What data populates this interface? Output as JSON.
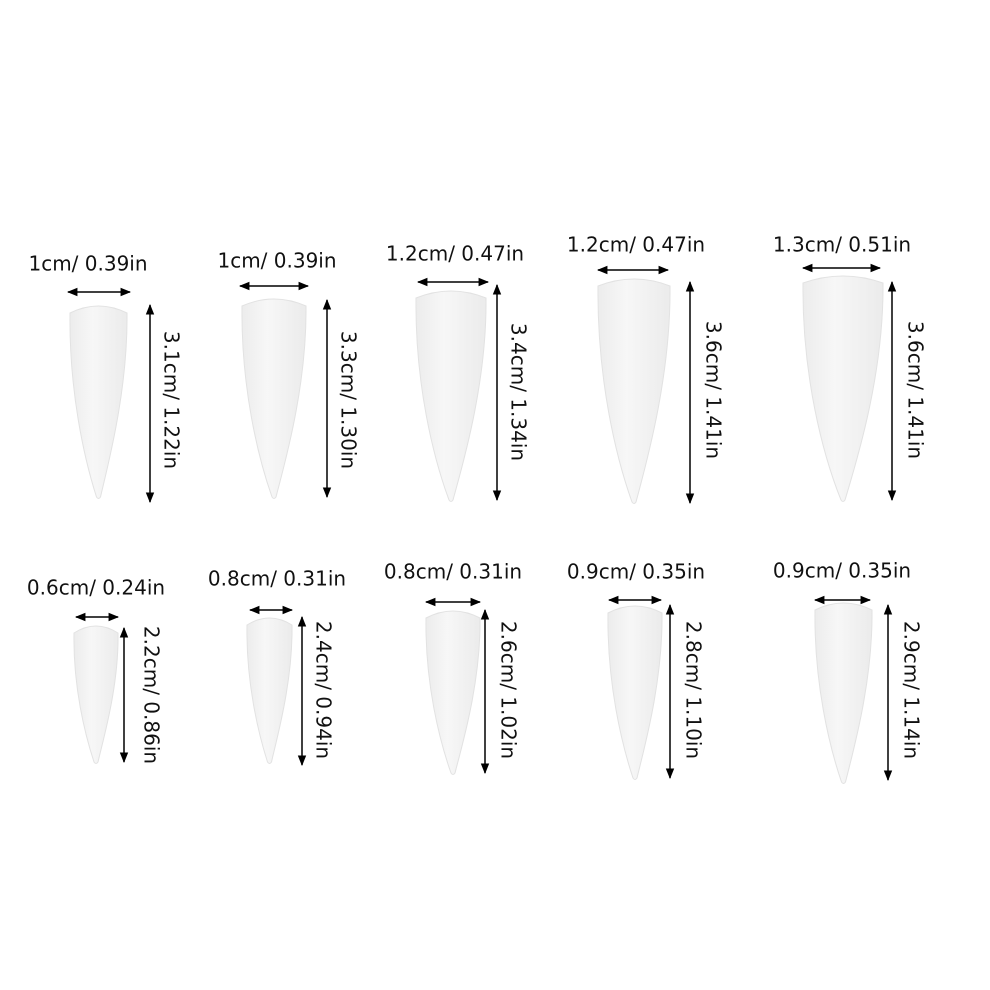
{
  "nails": [
    {
      "width": "1cm/ 0.39in",
      "length": "3.1cm/ 1.22in"
    },
    {
      "width": "1cm/ 0.39in",
      "length": "3.3cm/ 1.30in"
    },
    {
      "width": "1.2cm/ 0.47in",
      "length": "3.4cm/ 1.34in"
    },
    {
      "width": "1.2cm/ 0.47in",
      "length": "3.6cm/ 1.41in"
    },
    {
      "width": "1.3cm/ 0.51in",
      "length": "3.6cm/ 1.41in"
    },
    {
      "width": "0.6cm/ 0.24in",
      "length": "2.2cm/ 0.86in"
    },
    {
      "width": "0.8cm/ 0.31in",
      "length": "2.4cm/ 0.94in"
    },
    {
      "width": "0.8cm/ 0.31in",
      "length": "2.6cm/ 1.02in"
    },
    {
      "width": "0.9cm/ 0.35in",
      "length": "2.8cm/ 1.10in"
    },
    {
      "width": "0.9cm/ 0.35in",
      "length": "2.9cm/ 1.14in"
    }
  ]
}
